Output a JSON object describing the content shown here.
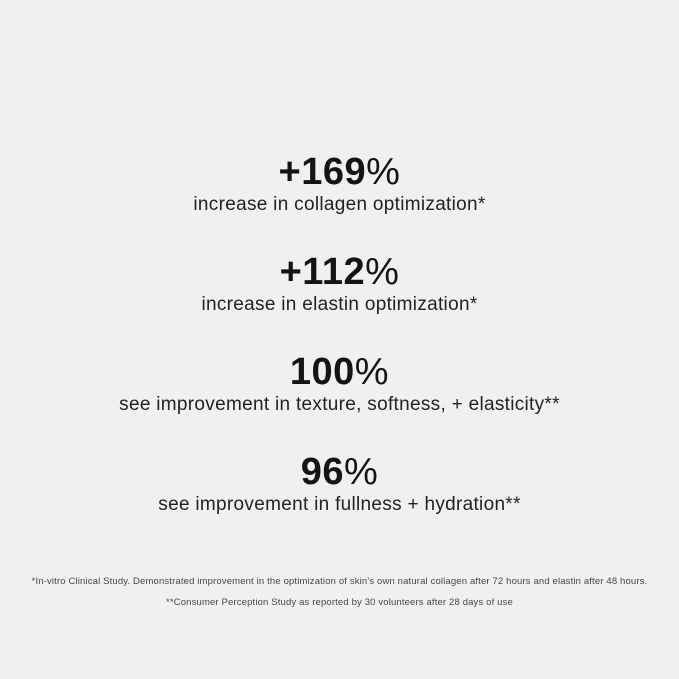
{
  "page": {
    "background_color": "#f0f0f1",
    "stat_text_color": "#141414",
    "description_text_color": "#222222",
    "footnote_text_color": "#474747"
  },
  "stats": [
    {
      "value": "+169",
      "percent": "%",
      "description": "increase in collagen optimization*"
    },
    {
      "value": "+112",
      "percent": "%",
      "description": "increase in elastin optimization*"
    },
    {
      "value": "100",
      "percent": "%",
      "description": "see improvement in texture, softness, + elasticity**"
    },
    {
      "value": "96",
      "percent": "%",
      "description": "see improvement in fullness + hydration**"
    }
  ],
  "footnotes": [
    "*In-vitro Clinical Study. Demonstrated improvement in the optimization of skin's own natural collagen after 72 hours and elastin after 48 hours.",
    "**Consumer Perception Study as reported by 30 volunteers after 28 days of use"
  ]
}
